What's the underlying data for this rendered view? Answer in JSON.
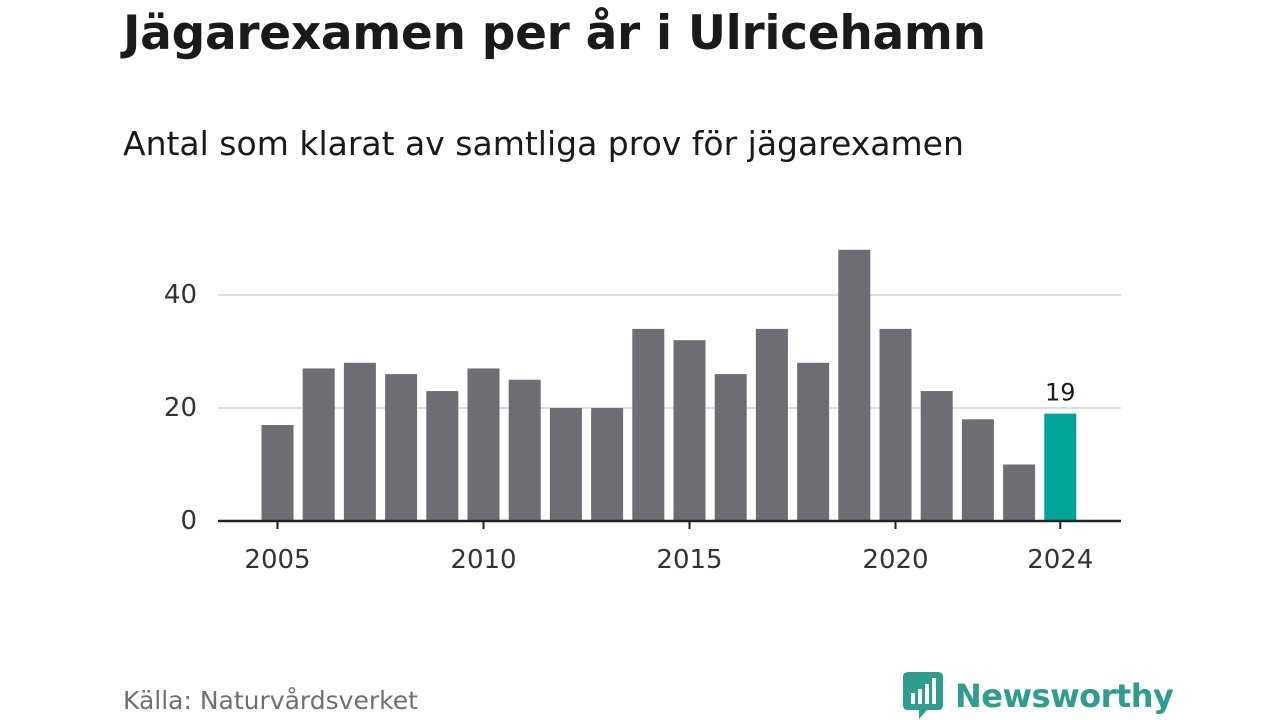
{
  "header": {
    "title": "Jägarexamen per år i Ulricehamn",
    "subtitle": "Antal som klarat av samtliga prov för jägarexamen"
  },
  "footer": {
    "source": "Källa: Naturvårdsverket",
    "brand": "Newsworthy",
    "brand_icon": "chart-speech-bubble-icon"
  },
  "colors": {
    "bar": "#6e6d73",
    "highlight": "#00a499",
    "brand": "#2e9c8f",
    "grid": "#dddddd",
    "axis": "#222222",
    "text": "#1a1a1a"
  },
  "chart_data": {
    "type": "bar",
    "title": "Jägarexamen per år i Ulricehamn",
    "subtitle": "Antal som klarat av samtliga prov för jägarexamen",
    "xlabel": "",
    "ylabel": "",
    "categories": [
      "2005",
      "2006",
      "2007",
      "2008",
      "2009",
      "2010",
      "2011",
      "2012",
      "2013",
      "2014",
      "2015",
      "2016",
      "2017",
      "2018",
      "2019",
      "2020",
      "2021",
      "2022",
      "2023",
      "2024"
    ],
    "values": [
      17,
      27,
      28,
      26,
      23,
      27,
      25,
      20,
      20,
      34,
      32,
      26,
      34,
      28,
      48,
      34,
      23,
      18,
      10,
      19
    ],
    "highlight_category": "2024",
    "annotations": [
      {
        "category": "2024",
        "text": "19"
      }
    ],
    "yticks": [
      0,
      20,
      40
    ],
    "ytick_labels": [
      "0",
      "20",
      "40"
    ],
    "xtick_labels": [
      "2005",
      "2010",
      "2015",
      "2020",
      "2024"
    ],
    "ylim": [
      0,
      50
    ],
    "grid": true,
    "legend": "none"
  }
}
